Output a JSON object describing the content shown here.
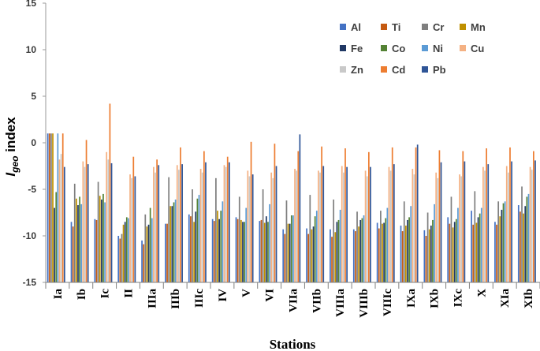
{
  "chart_data": {
    "type": "bar",
    "title": "",
    "xlabel": "Stations",
    "ylabel": "Igeo index",
    "ylabel_main": "I",
    "ylabel_sub": "geo",
    "ylabel_rest": " index",
    "ylim": [
      -15,
      15
    ],
    "yticks": [
      15,
      10,
      5,
      0,
      -5,
      -10,
      -15
    ],
    "grid": false,
    "legend_position": "top-right",
    "categories": [
      "Ia",
      "Ib",
      "Ic",
      "II",
      "IIIa",
      "IIIb",
      "IIIc",
      "IV",
      "V",
      "VI",
      "VIIa",
      "VIIb",
      "VIIIa",
      "VIIIb",
      "VIIIc",
      "IXa",
      "IXb",
      "IXc",
      "X",
      "XIa",
      "XIb"
    ],
    "series": [
      {
        "name": "Al",
        "color": "#4472C4",
        "values": [
          1.0,
          -8.5,
          -8.2,
          -10.0,
          -10.5,
          -8.7,
          -7.7,
          -8.2,
          -8.0,
          -8.4,
          -9.3,
          -9.2,
          -9.3,
          -9.3,
          -8.6,
          -8.9,
          -9.4,
          -8.0,
          -7.3,
          -8.5,
          -6.7
        ]
      },
      {
        "name": "Ti",
        "color": "#C55A11",
        "values": [
          1.0,
          -9.0,
          -8.3,
          -10.3,
          -10.9,
          -8.7,
          -7.9,
          -8.4,
          -8.2,
          -8.3,
          -9.8,
          -9.8,
          -10.1,
          -9.5,
          -9.2,
          -9.5,
          -10.0,
          -8.7,
          -8.8,
          -8.8,
          -7.4
        ]
      },
      {
        "name": "Cr",
        "color": "#7F7F7F",
        "values": [
          1.0,
          -4.4,
          -4.2,
          -9.8,
          -7.7,
          -3.7,
          -5.0,
          -3.8,
          -5.8,
          -5.0,
          -6.2,
          -5.6,
          -6.1,
          -7.4,
          -7.3,
          -6.3,
          -7.5,
          -5.8,
          -5.2,
          -6.3,
          -4.7
        ]
      },
      {
        "name": "Mn",
        "color": "#BF9000",
        "values": [
          1.0,
          -6.0,
          -5.7,
          -8.8,
          -9.0,
          -6.8,
          -8.5,
          -7.3,
          -8.3,
          -8.6,
          -8.7,
          -9.3,
          -9.6,
          -9.0,
          -8.7,
          -8.9,
          -9.3,
          -9.1,
          -8.6,
          -7.9,
          -7.6
        ]
      },
      {
        "name": "Fe",
        "color": "#203864",
        "values": [
          -7.0,
          -6.7,
          -6.1,
          -8.5,
          -8.8,
          -6.8,
          -7.4,
          -8.2,
          -8.5,
          -7.9,
          -8.7,
          -9.0,
          -8.5,
          -8.3,
          -8.6,
          -8.3,
          -8.9,
          -8.5,
          -8.0,
          -7.2,
          -6.8
        ]
      },
      {
        "name": "Co",
        "color": "#548235",
        "values": [
          -5.3,
          -5.8,
          -5.5,
          -8.0,
          -7.0,
          -6.4,
          -6.0,
          -7.3,
          -8.5,
          -8.5,
          -7.8,
          -7.9,
          -8.3,
          -8.1,
          -8.1,
          -8.0,
          -8.3,
          -8.2,
          -7.6,
          -6.5,
          -5.8
        ]
      },
      {
        "name": "Ni",
        "color": "#5B9BD5",
        "values": [
          1.0,
          -6.6,
          -6.4,
          -8.1,
          -8.1,
          -6.1,
          -5.6,
          -6.3,
          -7.0,
          -6.6,
          -7.8,
          -7.3,
          -7.2,
          -7.8,
          -7.0,
          -6.8,
          -6.6,
          -7.0,
          -7.0,
          -6.3,
          -5.5
        ]
      },
      {
        "name": "Cu",
        "color": "#F4B183",
        "values": [
          -1.8,
          -2.0,
          -1.0,
          -3.4,
          -2.6,
          -2.4,
          -2.8,
          -2.4,
          -3.0,
          -3.2,
          -2.8,
          -3.0,
          -2.5,
          -3.0,
          -2.6,
          -2.8,
          -3.2,
          -3.4,
          -2.6,
          -2.5,
          -2.6
        ]
      },
      {
        "name": "Zn",
        "color": "#C9C9C9",
        "values": [
          -1.2,
          -2.6,
          -1.8,
          -3.8,
          -3.2,
          -2.9,
          -3.2,
          -2.6,
          -3.6,
          -3.8,
          -3.0,
          -3.2,
          -3.2,
          -3.6,
          -3.0,
          -3.4,
          -3.8,
          -3.6,
          -3.0,
          -3.2,
          -2.9
        ]
      },
      {
        "name": "Cd",
        "color": "#ED7D31",
        "values": [
          1.0,
          0.3,
          4.2,
          -1.5,
          -1.8,
          -0.5,
          -0.9,
          -1.5,
          0.1,
          -0.1,
          -0.9,
          -0.4,
          -0.6,
          -1.0,
          -0.5,
          -0.5,
          -0.8,
          -0.9,
          -0.6,
          -0.5,
          -0.9
        ]
      },
      {
        "name": "Pb",
        "color": "#2F5597",
        "values": [
          -2.6,
          -2.3,
          -2.2,
          -3.6,
          -2.4,
          -2.3,
          -2.1,
          -2.1,
          -3.4,
          -2.5,
          0.9,
          -2.5,
          -2.6,
          -2.6,
          -2.3,
          -0.2,
          -2.1,
          -2.0,
          -2.3,
          -2.0,
          -1.9
        ]
      }
    ]
  }
}
